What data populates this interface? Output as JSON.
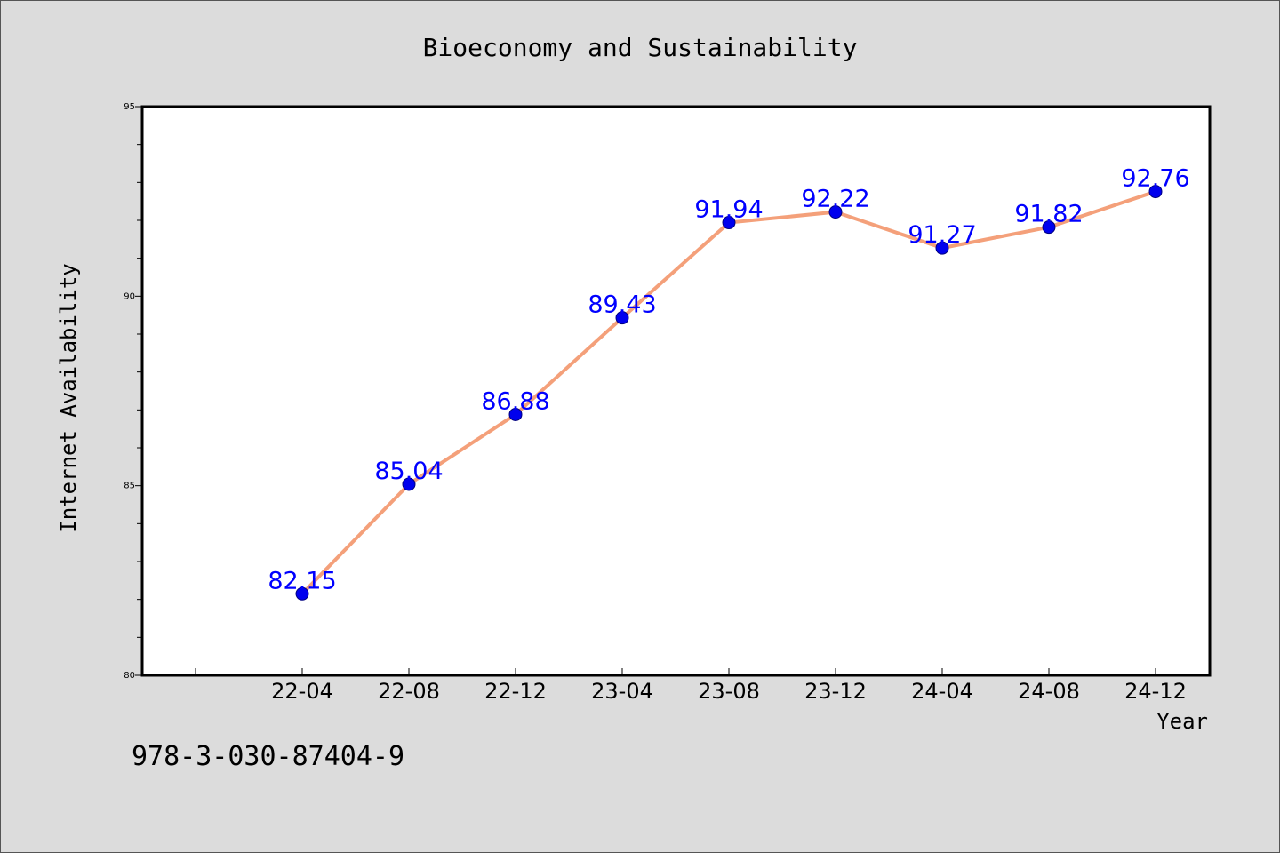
{
  "footnote": "978-3-030-87404-9",
  "colors": {
    "line": "#f4a07a",
    "marker": "#0000ee",
    "label": "#0000ff",
    "plot_bg": "#ffffff",
    "page_bg": "#dcdcdc"
  },
  "chart_data": {
    "type": "line",
    "title": "Bioeconomy and Sustainability",
    "xlabel": "Year",
    "ylabel": "Internet Availability",
    "categories": [
      "22-04",
      "22-08",
      "22-12",
      "23-04",
      "23-08",
      "23-12",
      "24-04",
      "24-08",
      "24-12"
    ],
    "series": [
      {
        "values": [
          82.15,
          85.04,
          86.88,
          89.43,
          91.94,
          92.22,
          91.27,
          91.82,
          92.76
        ],
        "labels": [
          "82.15",
          "85.04",
          "86.88",
          "89.43",
          "91.94",
          "92.22",
          "91.27",
          "91.82",
          "92.76"
        ]
      }
    ],
    "ylim": [
      80,
      95
    ],
    "yticks": [
      "80",
      "85",
      "90",
      "95"
    ],
    "grid": false,
    "legend": "none"
  }
}
